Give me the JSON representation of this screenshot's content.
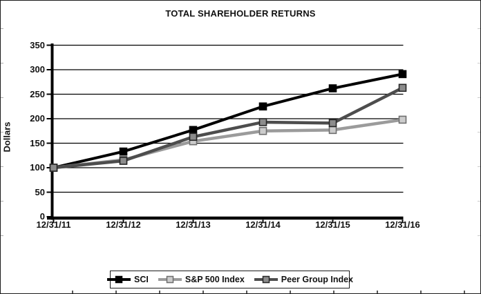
{
  "chart_data": {
    "type": "line",
    "title": "TOTAL SHAREHOLDER RETURNS",
    "ylabel": "Dollars",
    "xlabel": "",
    "categories": [
      "12/31/11",
      "12/31/12",
      "12/31/13",
      "12/31/14",
      "12/31/15",
      "12/31/16"
    ],
    "yticks": [
      0,
      50,
      100,
      150,
      200,
      250,
      300,
      350
    ],
    "ylim": [
      0,
      350
    ],
    "grid": true,
    "legend_position": "bottom",
    "series": [
      {
        "name": "SCI",
        "line_color": "#000000",
        "marker_fill": "#000000",
        "marker_stroke": "#000000",
        "values": [
          100,
          133,
          177,
          225,
          262,
          291
        ]
      },
      {
        "name": "S&P 500 Index",
        "line_color": "#9b9b9b",
        "marker_fill": "#cccccc",
        "marker_stroke": "#6e6e6e",
        "values": [
          100,
          116,
          154,
          175,
          177,
          198
        ]
      },
      {
        "name": "Peer Group Index",
        "line_color": "#4d4d4d",
        "marker_fill": "#8c8c8c",
        "marker_stroke": "#262626",
        "values": [
          100,
          114,
          163,
          193,
          191,
          263
        ]
      }
    ]
  }
}
